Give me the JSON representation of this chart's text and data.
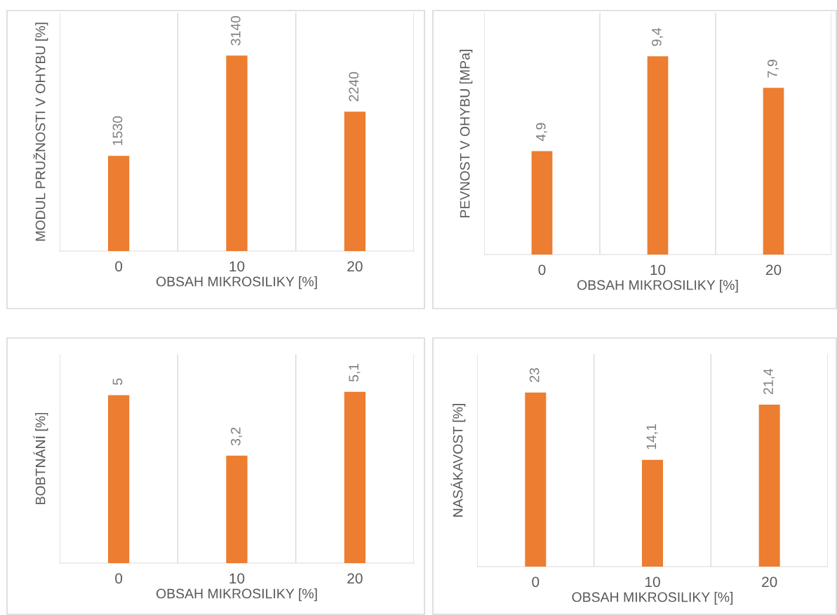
{
  "chart_data": [
    {
      "type": "bar",
      "categories": [
        "0",
        "10",
        "20"
      ],
      "values": [
        1530,
        3140,
        2240
      ],
      "value_labels": [
        "1530",
        "3140",
        "2240"
      ],
      "color": "#ed7d31",
      "xlabel": "OBSAH MIKROSILIKY [%]",
      "ylabel": "MODUL PRUŽNOSTI V OHYBU [%]",
      "grid": "x",
      "tick_labels": "x",
      "legend": false
    },
    {
      "type": "bar",
      "categories": [
        "0",
        "10",
        "20"
      ],
      "values": [
        4.9,
        9.4,
        7.9
      ],
      "value_labels": [
        "4,9",
        "9,4",
        "7,9"
      ],
      "color": "#ed7d31",
      "xlabel": "OBSAH MIKROSILIKY [%]",
      "ylabel": "PEVNOST V OHYBU [MPa]",
      "grid": "x",
      "tick_labels": "x",
      "legend": false
    },
    {
      "type": "bar",
      "categories": [
        "0",
        "10",
        "20"
      ],
      "values": [
        5,
        3.2,
        5.1
      ],
      "value_labels": [
        "5",
        "3,2",
        "5,1"
      ],
      "color": "#ed7d31",
      "xlabel": "OBSAH MIKROSILIKY [%]",
      "ylabel": "BOBTNÁNÍ [%]",
      "grid": "x",
      "tick_labels": "x",
      "legend": false
    },
    {
      "type": "bar",
      "categories": [
        "0",
        "10",
        "20"
      ],
      "values": [
        23,
        14.1,
        21.4
      ],
      "value_labels": [
        "23",
        "14,1",
        "21,4"
      ],
      "color": "#ed7d31",
      "xlabel": "OBSAH MIKROSILIKY [%]",
      "ylabel": "NASÁKAVOST [%]",
      "grid": "x",
      "tick_labels": "x",
      "legend": false
    }
  ]
}
